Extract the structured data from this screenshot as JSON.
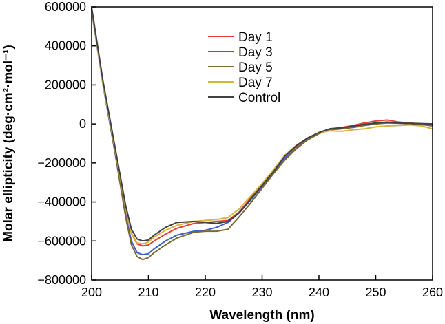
{
  "chart_data": {
    "type": "line",
    "title": "",
    "xlabel": "Wavelength (nm)",
    "ylabel": "Molar ellipticity (deg·cm²·mol⁻¹)",
    "xlim": [
      200,
      260
    ],
    "ylim": [
      -800000,
      600000
    ],
    "x_ticks": [
      200,
      210,
      220,
      230,
      240,
      250,
      260
    ],
    "x_tick_labels": [
      "200",
      "210",
      "220",
      "230",
      "240",
      "250",
      "260"
    ],
    "y_ticks": [
      -800000,
      -600000,
      -400000,
      -200000,
      0,
      200000,
      400000,
      600000
    ],
    "y_tick_labels": [
      "−800000",
      "−600000",
      "−400000",
      "−200000",
      "0",
      "200000",
      "400000",
      "600000"
    ],
    "legend_position": "top-center",
    "x": [
      200,
      202,
      204,
      206,
      207,
      208,
      209,
      210,
      211,
      213,
      215,
      218,
      220,
      222,
      224,
      226,
      228,
      230,
      232,
      234,
      236,
      238,
      240,
      242,
      244,
      246,
      248,
      250,
      252,
      254,
      256,
      258,
      260
    ],
    "series": [
      {
        "name": "Day 1",
        "color": "#e8403a",
        "values": [
          590000,
          210000,
          -120000,
          -440000,
          -560000,
          -615000,
          -625000,
          -620000,
          -600000,
          -565000,
          -535000,
          -510000,
          -505000,
          -500000,
          -495000,
          -450000,
          -380000,
          -310000,
          -240000,
          -165000,
          -115000,
          -75000,
          -45000,
          -25000,
          -18000,
          -8000,
          5000,
          15000,
          20000,
          10000,
          5000,
          0,
          -5000
        ]
      },
      {
        "name": "Day 3",
        "color": "#3a5fcd",
        "values": [
          580000,
          200000,
          -130000,
          -470000,
          -600000,
          -660000,
          -670000,
          -665000,
          -640000,
          -600000,
          -570000,
          -550000,
          -545000,
          -530000,
          -505000,
          -455000,
          -390000,
          -320000,
          -245000,
          -175000,
          -125000,
          -80000,
          -48000,
          -28000,
          -22000,
          -15000,
          -5000,
          5000,
          10000,
          5000,
          0,
          -2000,
          -8000
        ]
      },
      {
        "name": "Day 5",
        "color": "#7a6a30",
        "values": [
          600000,
          215000,
          -125000,
          -480000,
          -620000,
          -680000,
          -695000,
          -685000,
          -660000,
          -620000,
          -585000,
          -555000,
          -550000,
          -550000,
          -540000,
          -475000,
          -405000,
          -330000,
          -255000,
          -185000,
          -128000,
          -82000,
          -50000,
          -30000,
          -25000,
          -18000,
          -8000,
          0,
          5000,
          3000,
          0,
          -3000,
          -10000
        ]
      },
      {
        "name": "Day 7",
        "color": "#d9b43c",
        "values": [
          585000,
          205000,
          -110000,
          -430000,
          -560000,
          -610000,
          -615000,
          -605000,
          -580000,
          -545000,
          -520000,
          -500000,
          -495000,
          -490000,
          -480000,
          -435000,
          -370000,
          -305000,
          -235000,
          -160000,
          -110000,
          -72000,
          -45000,
          -35000,
          -38000,
          -30000,
          -25000,
          -15000,
          -10000,
          -8000,
          -5000,
          -10000,
          -25000
        ]
      },
      {
        "name": "Control",
        "color": "#404045",
        "values": [
          595000,
          220000,
          -100000,
          -420000,
          -540000,
          -590000,
          -600000,
          -595000,
          -570000,
          -530000,
          -505000,
          -500000,
          -505000,
          -510000,
          -500000,
          -455000,
          -385000,
          -315000,
          -245000,
          -165000,
          -112000,
          -72000,
          -44000,
          -24000,
          -20000,
          -10000,
          -2000,
          5000,
          8000,
          5000,
          3000,
          2000,
          0
        ]
      }
    ]
  }
}
